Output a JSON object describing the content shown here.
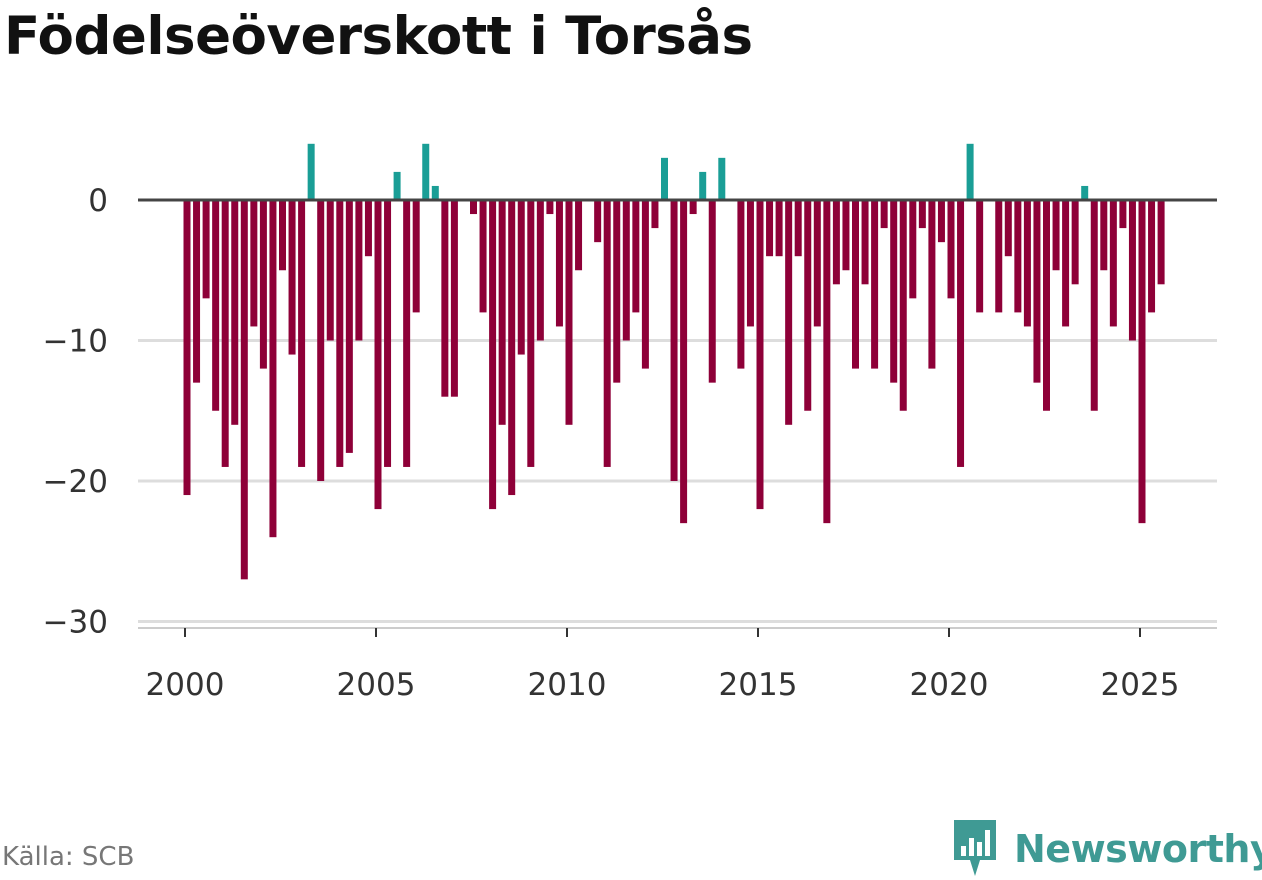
{
  "title": "Födelseöverskott i Torsås",
  "source": "Källa: SCB",
  "brand": "Newsworthy",
  "colors": {
    "negative": "#8e0038",
    "positive": "#1a9e96",
    "grid": "#dddddd",
    "zero": "#444444",
    "brand": "#3f9a94"
  },
  "chart_data": {
    "type": "bar",
    "title": "Födelseöverskott i Torsås",
    "xlabel": "",
    "ylabel": "",
    "frequency": "quarterly",
    "start": "2000 Q1",
    "ylim": [
      -30,
      4
    ],
    "yticks": [
      0,
      -10,
      -20,
      -30
    ],
    "ytick_labels": [
      "0",
      "−10",
      "−20",
      "−30"
    ],
    "xticks": [
      2000,
      2005,
      2010,
      2015,
      2020,
      2025
    ],
    "values": [
      -21,
      -13,
      -7,
      -15,
      -19,
      -16,
      -27,
      -9,
      -12,
      -24,
      -5,
      -11,
      -19,
      4,
      -20,
      -10,
      -19,
      -18,
      -10,
      -4,
      -22,
      -19,
      2,
      -19,
      -8,
      4,
      1,
      -14,
      -14,
      0,
      -1,
      -8,
      -22,
      -16,
      -21,
      -11,
      -19,
      -10,
      -1,
      -9,
      -16,
      -5,
      0,
      -3,
      -19,
      -13,
      -10,
      -8,
      -12,
      -2,
      3,
      -20,
      -23,
      -1,
      2,
      -13,
      3,
      0,
      -12,
      -9,
      -22,
      -4,
      -4,
      -16,
      -4,
      -15,
      -9,
      -23,
      -6,
      -5,
      -12,
      -6,
      -12,
      -2,
      -13,
      -15,
      -7,
      -2,
      -12,
      -3,
      -7,
      -19,
      4,
      -8,
      0,
      -8,
      -4,
      -8,
      -9,
      -13,
      -15,
      -5,
      -9,
      -6,
      1,
      -15,
      -5,
      -9,
      -2,
      -10,
      -23,
      -8,
      -6
    ]
  }
}
